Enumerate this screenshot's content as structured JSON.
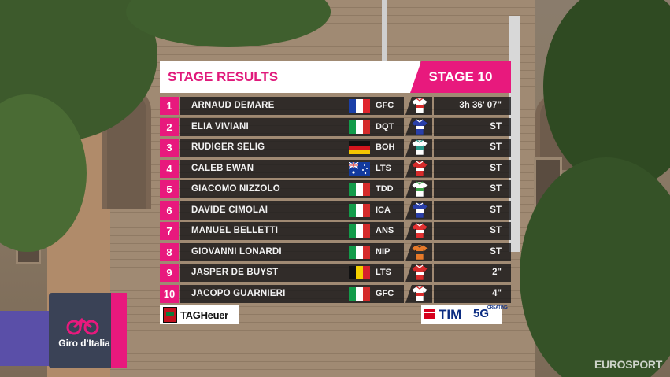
{
  "header": {
    "title": "STAGE RESULTS",
    "stage": "STAGE 10"
  },
  "colors": {
    "accent": "#e8197d",
    "row_bg": "#121214",
    "text": "#f2f2f2"
  },
  "results": [
    {
      "pos": "1",
      "name": "ARNAUD DEMARE",
      "country": "france",
      "team": "GFC",
      "jersey": "white-red-jersey-icon",
      "time": "3h 36' 07\""
    },
    {
      "pos": "2",
      "name": "ELIA VIVIANI",
      "country": "italy",
      "team": "DQT",
      "jersey": "blue-white-jersey-icon",
      "time": "ST"
    },
    {
      "pos": "3",
      "name": "RUDIGER SELIG",
      "country": "germany",
      "team": "BOH",
      "jersey": "teal-white-jersey-icon",
      "time": "ST"
    },
    {
      "pos": "4",
      "name": "CALEB EWAN",
      "country": "australia",
      "team": "LTS",
      "jersey": "red-white-jersey-icon",
      "time": "ST"
    },
    {
      "pos": "5",
      "name": "GIACOMO NIZZOLO",
      "country": "italy",
      "team": "TDD",
      "jersey": "green-white-jersey-icon",
      "time": "ST"
    },
    {
      "pos": "6",
      "name": "DAVIDE CIMOLAI",
      "country": "italy",
      "team": "ICA",
      "jersey": "blue-white-jersey-icon",
      "time": "ST"
    },
    {
      "pos": "7",
      "name": "MANUEL BELLETTI",
      "country": "italy",
      "team": "ANS",
      "jersey": "red-jersey-icon",
      "time": "ST"
    },
    {
      "pos": "8",
      "name": "GIOVANNI LONARDI",
      "country": "italy",
      "team": "NIP",
      "jersey": "orange-black-jersey-icon",
      "time": "ST"
    },
    {
      "pos": "9",
      "name": "JASPER DE BUYST",
      "country": "belgium",
      "team": "LTS",
      "jersey": "red-white-jersey-icon",
      "time": "2\""
    },
    {
      "pos": "10",
      "name": "JACOPO GUARNIERI",
      "country": "italy",
      "team": "GFC",
      "jersey": "white-red-jersey-icon",
      "time": "4\""
    }
  ],
  "sponsors": {
    "tagheuer": "TAGHeuer",
    "tim": "TIM",
    "tim_5g": "5G",
    "tim_small": "CREATING"
  },
  "giro": {
    "logo_text": "Giro d'Italia"
  },
  "broadcaster": "EUROSPORT"
}
